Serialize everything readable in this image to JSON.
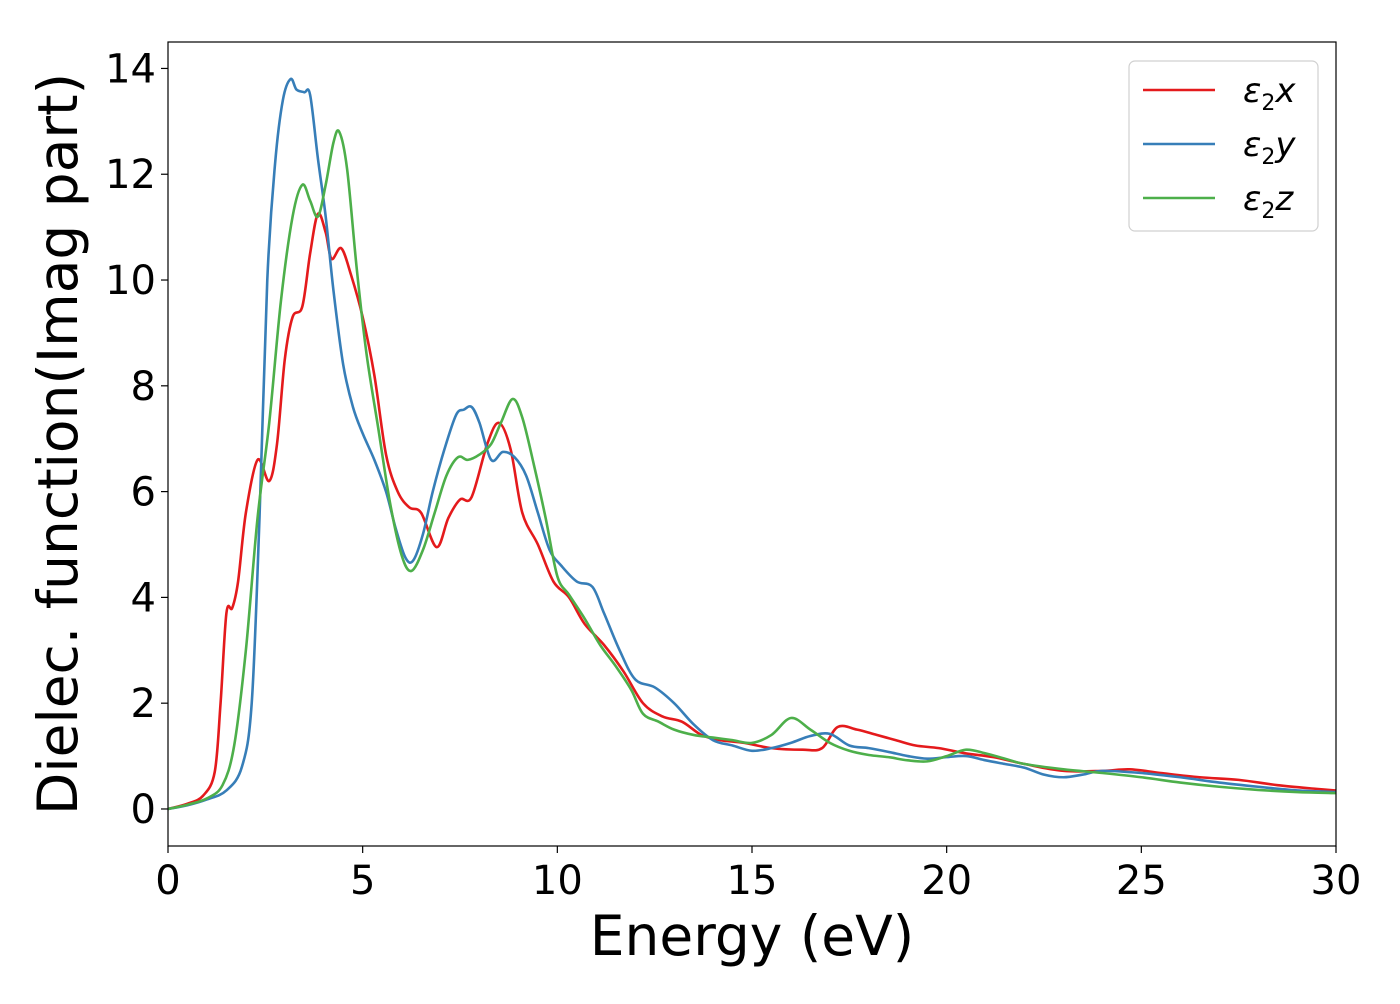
{
  "chart_data": {
    "type": "line",
    "xlabel": "Energy (eV)",
    "ylabel": "Dielec. function(Imag part)",
    "xlim": [
      0,
      30
    ],
    "ylim": [
      -0.7,
      14.5
    ],
    "xticks": [
      0,
      5,
      10,
      15,
      20,
      25,
      30
    ],
    "yticks": [
      0,
      2,
      4,
      6,
      8,
      10,
      12,
      14
    ],
    "grid": false,
    "legend_position": "top-right",
    "series": [
      {
        "name": "ε2x",
        "legend_base": "ε",
        "legend_sub": "2",
        "legend_tail": "x",
        "color": "#e41a1c",
        "points": [
          [
            0,
            0.0
          ],
          [
            0.5,
            0.1
          ],
          [
            0.9,
            0.25
          ],
          [
            1.2,
            0.7
          ],
          [
            1.35,
            2.0
          ],
          [
            1.5,
            3.7
          ],
          [
            1.65,
            3.8
          ],
          [
            1.8,
            4.3
          ],
          [
            2.0,
            5.6
          ],
          [
            2.3,
            6.6
          ],
          [
            2.6,
            6.2
          ],
          [
            2.8,
            6.9
          ],
          [
            3.0,
            8.5
          ],
          [
            3.2,
            9.3
          ],
          [
            3.45,
            9.5
          ],
          [
            3.65,
            10.5
          ],
          [
            3.85,
            11.25
          ],
          [
            4.05,
            10.9
          ],
          [
            4.2,
            10.4
          ],
          [
            4.45,
            10.6
          ],
          [
            4.7,
            10.1
          ],
          [
            5.0,
            9.3
          ],
          [
            5.3,
            8.2
          ],
          [
            5.6,
            6.7
          ],
          [
            5.9,
            6.0
          ],
          [
            6.2,
            5.7
          ],
          [
            6.5,
            5.6
          ],
          [
            6.9,
            4.95
          ],
          [
            7.2,
            5.5
          ],
          [
            7.5,
            5.85
          ],
          [
            7.8,
            5.9
          ],
          [
            8.2,
            6.9
          ],
          [
            8.5,
            7.3
          ],
          [
            8.8,
            6.8
          ],
          [
            9.1,
            5.6
          ],
          [
            9.5,
            5.0
          ],
          [
            9.9,
            4.3
          ],
          [
            10.3,
            4.0
          ],
          [
            10.7,
            3.5
          ],
          [
            11.2,
            3.1
          ],
          [
            11.7,
            2.6
          ],
          [
            12.2,
            2.0
          ],
          [
            12.7,
            1.75
          ],
          [
            13.2,
            1.65
          ],
          [
            13.7,
            1.4
          ],
          [
            14.2,
            1.3
          ],
          [
            14.8,
            1.25
          ],
          [
            15.5,
            1.15
          ],
          [
            16.3,
            1.12
          ],
          [
            16.8,
            1.15
          ],
          [
            17.2,
            1.55
          ],
          [
            17.7,
            1.5
          ],
          [
            18.2,
            1.4
          ],
          [
            18.7,
            1.3
          ],
          [
            19.2,
            1.2
          ],
          [
            19.8,
            1.15
          ],
          [
            20.5,
            1.05
          ],
          [
            21.2,
            0.98
          ],
          [
            22.0,
            0.85
          ],
          [
            23.0,
            0.72
          ],
          [
            24.0,
            0.72
          ],
          [
            24.7,
            0.75
          ],
          [
            25.5,
            0.68
          ],
          [
            26.5,
            0.6
          ],
          [
            27.5,
            0.55
          ],
          [
            28.5,
            0.45
          ],
          [
            29.5,
            0.38
          ],
          [
            30,
            0.35
          ]
        ]
      },
      {
        "name": "ε2y",
        "legend_base": "ε",
        "legend_sub": "2",
        "legend_tail": "y",
        "color": "#377eb8",
        "points": [
          [
            0,
            0.0
          ],
          [
            0.5,
            0.07
          ],
          [
            1.0,
            0.18
          ],
          [
            1.5,
            0.35
          ],
          [
            1.9,
            0.8
          ],
          [
            2.15,
            2.0
          ],
          [
            2.35,
            5.5
          ],
          [
            2.55,
            10.0
          ],
          [
            2.75,
            12.2
          ],
          [
            2.95,
            13.4
          ],
          [
            3.15,
            13.8
          ],
          [
            3.3,
            13.6
          ],
          [
            3.5,
            13.55
          ],
          [
            3.65,
            13.5
          ],
          [
            3.85,
            12.3
          ],
          [
            4.05,
            11.2
          ],
          [
            4.25,
            9.8
          ],
          [
            4.5,
            8.4
          ],
          [
            4.75,
            7.6
          ],
          [
            5.0,
            7.1
          ],
          [
            5.3,
            6.6
          ],
          [
            5.6,
            6.0
          ],
          [
            5.85,
            5.3
          ],
          [
            6.1,
            4.75
          ],
          [
            6.3,
            4.7
          ],
          [
            6.55,
            5.2
          ],
          [
            6.8,
            6.0
          ],
          [
            7.1,
            6.8
          ],
          [
            7.4,
            7.45
          ],
          [
            7.6,
            7.55
          ],
          [
            7.8,
            7.6
          ],
          [
            8.0,
            7.3
          ],
          [
            8.3,
            6.6
          ],
          [
            8.6,
            6.75
          ],
          [
            8.9,
            6.65
          ],
          [
            9.2,
            6.3
          ],
          [
            9.5,
            5.6
          ],
          [
            9.8,
            4.9
          ],
          [
            10.1,
            4.6
          ],
          [
            10.5,
            4.3
          ],
          [
            10.9,
            4.2
          ],
          [
            11.2,
            3.7
          ],
          [
            11.6,
            3.0
          ],
          [
            12.0,
            2.45
          ],
          [
            12.5,
            2.3
          ],
          [
            13.0,
            2.0
          ],
          [
            13.5,
            1.6
          ],
          [
            14.0,
            1.3
          ],
          [
            14.5,
            1.2
          ],
          [
            15.0,
            1.1
          ],
          [
            15.5,
            1.15
          ],
          [
            16.0,
            1.25
          ],
          [
            16.5,
            1.38
          ],
          [
            17.0,
            1.42
          ],
          [
            17.5,
            1.2
          ],
          [
            18.0,
            1.15
          ],
          [
            18.5,
            1.08
          ],
          [
            19.0,
            1.0
          ],
          [
            19.5,
            0.95
          ],
          [
            20.0,
            0.98
          ],
          [
            20.5,
            1.0
          ],
          [
            21.0,
            0.92
          ],
          [
            21.5,
            0.85
          ],
          [
            22.0,
            0.78
          ],
          [
            22.5,
            0.65
          ],
          [
            23.0,
            0.6
          ],
          [
            23.5,
            0.65
          ],
          [
            24.0,
            0.72
          ],
          [
            25.0,
            0.68
          ],
          [
            26.0,
            0.6
          ],
          [
            27.0,
            0.5
          ],
          [
            28.0,
            0.42
          ],
          [
            29.0,
            0.35
          ],
          [
            30,
            0.32
          ]
        ]
      },
      {
        "name": "ε2z",
        "legend_base": "ε",
        "legend_sub": "2",
        "legend_tail": "z",
        "color": "#4daf4a",
        "points": [
          [
            0,
            0.0
          ],
          [
            0.5,
            0.08
          ],
          [
            1.0,
            0.2
          ],
          [
            1.4,
            0.45
          ],
          [
            1.7,
            1.2
          ],
          [
            2.0,
            3.0
          ],
          [
            2.3,
            5.5
          ],
          [
            2.6,
            7.3
          ],
          [
            2.9,
            9.6
          ],
          [
            3.2,
            11.2
          ],
          [
            3.45,
            11.8
          ],
          [
            3.65,
            11.5
          ],
          [
            3.85,
            11.2
          ],
          [
            4.05,
            11.8
          ],
          [
            4.25,
            12.6
          ],
          [
            4.4,
            12.8
          ],
          [
            4.6,
            12.1
          ],
          [
            4.85,
            10.2
          ],
          [
            5.1,
            8.6
          ],
          [
            5.4,
            7.2
          ],
          [
            5.7,
            5.8
          ],
          [
            6.0,
            4.8
          ],
          [
            6.25,
            4.5
          ],
          [
            6.55,
            4.9
          ],
          [
            6.85,
            5.6
          ],
          [
            7.15,
            6.3
          ],
          [
            7.45,
            6.65
          ],
          [
            7.7,
            6.6
          ],
          [
            8.0,
            6.7
          ],
          [
            8.3,
            6.9
          ],
          [
            8.55,
            7.3
          ],
          [
            8.85,
            7.75
          ],
          [
            9.1,
            7.4
          ],
          [
            9.4,
            6.5
          ],
          [
            9.7,
            5.5
          ],
          [
            10.0,
            4.4
          ],
          [
            10.3,
            4.05
          ],
          [
            10.7,
            3.6
          ],
          [
            11.1,
            3.1
          ],
          [
            11.5,
            2.7
          ],
          [
            11.9,
            2.25
          ],
          [
            12.2,
            1.8
          ],
          [
            12.6,
            1.65
          ],
          [
            13.0,
            1.5
          ],
          [
            13.5,
            1.4
          ],
          [
            14.0,
            1.35
          ],
          [
            14.5,
            1.3
          ],
          [
            15.0,
            1.25
          ],
          [
            15.5,
            1.4
          ],
          [
            16.0,
            1.72
          ],
          [
            16.5,
            1.5
          ],
          [
            17.0,
            1.25
          ],
          [
            17.5,
            1.1
          ],
          [
            18.0,
            1.02
          ],
          [
            18.5,
            0.98
          ],
          [
            19.0,
            0.92
          ],
          [
            19.5,
            0.9
          ],
          [
            20.0,
            1.0
          ],
          [
            20.5,
            1.12
          ],
          [
            21.0,
            1.05
          ],
          [
            21.5,
            0.95
          ],
          [
            22.0,
            0.85
          ],
          [
            23.0,
            0.75
          ],
          [
            24.0,
            0.68
          ],
          [
            25.0,
            0.6
          ],
          [
            26.0,
            0.5
          ],
          [
            27.0,
            0.42
          ],
          [
            28.0,
            0.36
          ],
          [
            29.0,
            0.32
          ],
          [
            30,
            0.3
          ]
        ]
      }
    ]
  }
}
